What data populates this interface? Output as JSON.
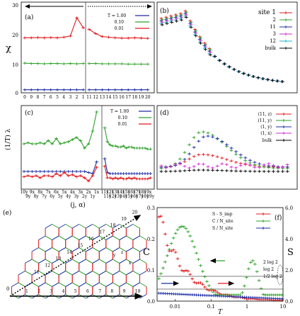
{
  "chart_data": [
    {
      "panel": "(a)",
      "type": "line",
      "ylabel": "χ",
      "ylim": [
        0,
        30
      ],
      "yticks": [
        "0",
        "10",
        "20",
        "30"
      ],
      "xticks_left": [
        "0",
        "9",
        "8",
        "7",
        "6",
        "5",
        "4",
        "3",
        "2",
        "1"
      ],
      "xticks_right": [
        "11",
        "12",
        "13",
        "14",
        "15",
        "16",
        "17",
        "18",
        "19",
        "20"
      ],
      "legend_title": "T = 1.00",
      "series": [
        {
          "name": "T = 1.00",
          "color": "#1c2ca3",
          "left": [
            1.0,
            1.0,
            1.0,
            1.0,
            1.0,
            1.0,
            1.0,
            1.0,
            1.0,
            1.0
          ],
          "right": [
            1.0,
            1.0,
            1.0,
            1.0,
            1.0,
            1.0,
            1.0,
            1.0,
            1.0,
            1.0
          ]
        },
        {
          "name": "0.10",
          "color": "#2fa12a",
          "left": [
            9.8,
            9.7,
            9.7,
            9.6,
            9.7,
            9.7,
            9.6,
            9.7,
            9.6,
            9.7
          ],
          "right": [
            9.7,
            9.7,
            9.6,
            9.6,
            9.6,
            9.6,
            9.5,
            9.5,
            9.5,
            9.5
          ]
        },
        {
          "name": "0.01",
          "color": "#e0191c",
          "left": [
            18.2,
            18.2,
            18.3,
            18.2,
            18.3,
            18.2,
            18.4,
            18.8,
            24.8,
            21.5
          ],
          "right": [
            21.0,
            19.6,
            18.6,
            18.4,
            18.2,
            18.1,
            18.1,
            18.2,
            18.1,
            18.0
          ]
        }
      ]
    },
    {
      "panel": "(b)",
      "type": "scatter",
      "legend": [
        "site 1",
        "2",
        "11",
        "3",
        "12",
        "bulk"
      ],
      "colors": [
        "#e0191c",
        "#2fa12a",
        "#1c2ca3",
        "#d22ad2",
        "#1bb8c8",
        "#000000"
      ]
    },
    {
      "panel": "(c)",
      "type": "line",
      "ylabel": "(1/T) λ",
      "xlabel": "(j, α)",
      "legend": [
        "T = 1.00",
        "0.10",
        "0.01"
      ],
      "xticks_left": [
        "10y",
        "9y",
        "9x",
        "8y",
        "8x",
        "7y",
        "7x",
        "6y",
        "6x",
        "5y",
        "5x",
        "4y",
        "4x",
        "3y",
        "3x",
        "2y",
        "2x",
        "1y",
        "1x"
      ],
      "xticks_right": [
        "11x",
        "11y",
        "12x",
        "12y",
        "13x",
        "13y",
        "14x",
        "14y",
        "15x",
        "15y",
        "16x",
        "16y",
        "17x",
        "17y",
        "18x",
        "18y",
        "19x",
        "19y"
      ],
      "series": [
        {
          "name": "T = 1.00",
          "color": "#1c2ca3",
          "left": [
            1.4,
            1.4,
            1.4,
            1.4,
            1.4,
            1.4,
            1.4,
            1.4,
            1.4,
            1.4,
            1.4,
            1.4,
            1.4,
            1.4,
            1.4,
            1.4,
            1.3,
            1.2,
            2.3
          ],
          "right": [
            2.6,
            1.3,
            1.2,
            1.2,
            1.2,
            1.2,
            1.2,
            1.2,
            1.2,
            1.2,
            1.2,
            1.2,
            1.2,
            1.2,
            1.2,
            1.2,
            1.2,
            1.2
          ]
        },
        {
          "name": "0.10",
          "color": "#2fa12a",
          "left": [
            4.0,
            4.1,
            4.0,
            4.0,
            4.1,
            4.0,
            4.3,
            4.0,
            4.5,
            4.0,
            4.1,
            4.2,
            4.4,
            4.6,
            4.3,
            3.6,
            4.0,
            5.2,
            7.0
          ],
          "right": [
            5.5,
            4.2,
            3.9,
            3.8,
            3.8,
            3.7,
            3.7,
            3.8,
            3.6,
            3.7,
            3.7,
            3.6,
            3.6,
            3.6,
            3.6,
            3.6,
            3.5,
            3.5
          ]
        },
        {
          "name": "0.01",
          "color": "#e0191c",
          "left": [
            0.9,
            1.0,
            0.9,
            1.0,
            0.8,
            1.0,
            1.0,
            0.9,
            1.2,
            1.0,
            1.3,
            1.0,
            1.1,
            0.9,
            1.0,
            0.8,
            0.5,
            1.0,
            1.8
          ],
          "right": [
            1.9,
            0.8,
            0.8,
            0.7,
            0.8,
            0.7,
            0.8,
            0.7,
            0.7,
            0.8,
            0.7,
            0.8,
            0.7,
            0.7,
            0.7,
            0.7,
            0.7,
            0.8
          ]
        }
      ]
    },
    {
      "panel": "(d)",
      "type": "scatter",
      "legend": [
        "(11, z)",
        "(11, y)",
        "(1, y)",
        "(1, x)",
        "bulk"
      ],
      "colors": [
        "#e0191c",
        "#2fa12a",
        "#1c2ca3",
        "#d22ad2",
        "#000000"
      ]
    },
    {
      "panel": "(e)",
      "type": "diagram",
      "sites_bottom": [
        "1",
        "2",
        "3",
        "4",
        "5",
        "6",
        "7",
        "8",
        "9",
        "10"
      ],
      "sites_top": [
        "11",
        "12",
        "13",
        "14",
        "15",
        "16",
        "17",
        "18",
        "19",
        "20"
      ],
      "origin_label": "0",
      "bond_labels": [
        "x",
        "y",
        "z"
      ]
    },
    {
      "panel": "(f)",
      "type": "scatter",
      "xlabel": "T",
      "ylabel_left": "C",
      "ylabel_right": "S",
      "xticks": [
        "0.01",
        "0.1",
        "1",
        "10"
      ],
      "yticks_left": [
        "0.0",
        "0.1",
        "0.2",
        "0.3"
      ],
      "yticks_right": [
        "0.0",
        "2.0",
        "4.0",
        "6.0"
      ],
      "ylim_left": [
        0,
        0.3
      ],
      "ylim_right": [
        0,
        6
      ],
      "legend": [
        "S - S_imp",
        "C / N_site",
        "S / N_site"
      ],
      "annotations": [
        "2 log 2",
        "log 2",
        "1/2 log 2"
      ]
    }
  ]
}
